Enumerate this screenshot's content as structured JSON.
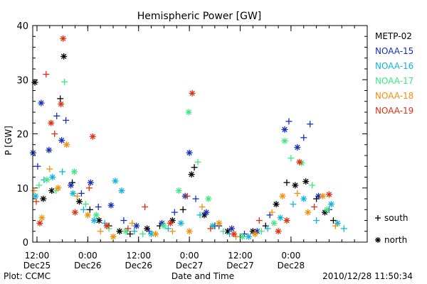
{
  "chart_data": {
    "type": "scatter",
    "title": "Hemispheric Power [GW]",
    "ylabel": "P [GW]",
    "xlabel": "Date and Time",
    "ylim": [
      0,
      40
    ],
    "yticks": [
      0,
      10,
      20,
      30,
      40
    ],
    "xlim": [
      "2010-12-25 11:00",
      "2010-12-28 18:00"
    ],
    "xticks": [
      {
        "time": "2010-12-25 12:00",
        "time_label": "12:00",
        "date_label": "Dec25"
      },
      {
        "time": "2010-12-26 00:00",
        "time_label": "0:00",
        "date_label": "Dec26"
      },
      {
        "time": "2010-12-26 12:00",
        "time_label": "12:00",
        "date_label": "Dec26"
      },
      {
        "time": "2010-12-27 00:00",
        "time_label": "0:00",
        "date_label": "Dec27"
      },
      {
        "time": "2010-12-27 12:00",
        "time_label": "12:00",
        "date_label": "Dec27"
      },
      {
        "time": "2010-12-28 00:00",
        "time_label": "0:00",
        "date_label": "Dec28"
      }
    ],
    "legend_position": "right",
    "legend_satellites": [
      {
        "name": "METP-02",
        "color": "#000000"
      },
      {
        "name": "NOAA-15",
        "color": "#1530b8"
      },
      {
        "name": "NOAA-16",
        "color": "#10b4e0"
      },
      {
        "name": "NOAA-17",
        "color": "#40e880"
      },
      {
        "name": "NOAA-18",
        "color": "#f0900a"
      },
      {
        "name": "NOAA-19",
        "color": "#e03010"
      }
    ],
    "legend_markers": [
      {
        "symbol": "+",
        "label": "south"
      },
      {
        "symbol": "*",
        "label": "north"
      }
    ],
    "series": [
      {
        "name": "METP-02",
        "color": "#000000",
        "points": [
          {
            "t": "2010-12-25 11:30",
            "v": 29.5,
            "m": "*"
          },
          {
            "t": "2010-12-25 13:30",
            "v": 8.0,
            "m": "*"
          },
          {
            "t": "2010-12-25 15:30",
            "v": 9.5,
            "m": "*"
          },
          {
            "t": "2010-12-25 17:30",
            "v": 26.5,
            "m": "+"
          },
          {
            "t": "2010-12-25 18:20",
            "v": 34.3,
            "m": "*"
          },
          {
            "t": "2010-12-25 20:20",
            "v": 11.0,
            "m": "+"
          },
          {
            "t": "2010-12-25 22:00",
            "v": 7.5,
            "m": "*"
          },
          {
            "t": "2010-12-26 00:30",
            "v": 6.0,
            "m": "+"
          },
          {
            "t": "2010-12-26 02:40",
            "v": 4.0,
            "m": "*"
          },
          {
            "t": "2010-12-26 05:00",
            "v": 3.0,
            "m": "+"
          },
          {
            "t": "2010-12-26 07:30",
            "v": 2.0,
            "m": "*"
          },
          {
            "t": "2010-12-26 10:00",
            "v": 1.5,
            "m": "+"
          },
          {
            "t": "2010-12-26 14:00",
            "v": 2.5,
            "m": "*"
          },
          {
            "t": "2010-12-26 17:00",
            "v": 3.0,
            "m": "+"
          },
          {
            "t": "2010-12-26 20:00",
            "v": 4.0,
            "m": "*"
          },
          {
            "t": "2010-12-26 22:30",
            "v": 6.0,
            "m": "+"
          },
          {
            "t": "2010-12-27 00:30",
            "v": 12.5,
            "m": "*"
          },
          {
            "t": "2010-12-27 01:10",
            "v": 13.8,
            "m": "+"
          },
          {
            "t": "2010-12-27 03:30",
            "v": 5.0,
            "m": "*"
          },
          {
            "t": "2010-12-27 06:00",
            "v": 3.0,
            "m": "+"
          },
          {
            "t": "2010-12-27 09:00",
            "v": 2.0,
            "m": "*"
          },
          {
            "t": "2010-12-27 12:00",
            "v": 1.0,
            "m": "+"
          },
          {
            "t": "2010-12-27 15:00",
            "v": 2.0,
            "m": "*"
          },
          {
            "t": "2010-12-27 18:00",
            "v": 3.0,
            "m": "+"
          },
          {
            "t": "2010-12-27 20:30",
            "v": 7.0,
            "m": "*"
          },
          {
            "t": "2010-12-27 23:00",
            "v": 11.0,
            "m": "+"
          },
          {
            "t": "2010-12-28 01:00",
            "v": 10.5,
            "m": "*"
          },
          {
            "t": "2010-12-28 03:30",
            "v": 11.2,
            "m": "*"
          },
          {
            "t": "2010-12-28 06:00",
            "v": 8.0,
            "m": "+"
          },
          {
            "t": "2010-12-28 08:00",
            "v": 5.5,
            "m": "*"
          },
          {
            "t": "2010-12-28 10:00",
            "v": 4.0,
            "m": "+"
          }
        ]
      },
      {
        "name": "NOAA-15",
        "color": "#1530b8",
        "points": [
          {
            "t": "2010-12-25 11:05",
            "v": 16.5,
            "m": "*"
          },
          {
            "t": "2010-12-25 12:10",
            "v": 14.0,
            "m": "+"
          },
          {
            "t": "2010-12-25 13:00",
            "v": 25.7,
            "m": "*"
          },
          {
            "t": "2010-12-25 14:50",
            "v": 17.0,
            "m": "*"
          },
          {
            "t": "2010-12-25 16:40",
            "v": 23.3,
            "m": "+"
          },
          {
            "t": "2010-12-25 17:50",
            "v": 18.8,
            "m": "*"
          },
          {
            "t": "2010-12-25 18:50",
            "v": 22.5,
            "m": "+"
          },
          {
            "t": "2010-12-25 20:00",
            "v": 10.5,
            "m": "*"
          },
          {
            "t": "2010-12-25 22:30",
            "v": 9.0,
            "m": "+"
          },
          {
            "t": "2010-12-26 00:40",
            "v": 11.0,
            "m": "*"
          },
          {
            "t": "2010-12-26 02:30",
            "v": 6.5,
            "m": "+"
          },
          {
            "t": "2010-12-26 05:30",
            "v": 6.8,
            "m": "*"
          },
          {
            "t": "2010-12-26 08:30",
            "v": 4.0,
            "m": "+"
          },
          {
            "t": "2010-12-26 11:30",
            "v": 3.0,
            "m": "*"
          },
          {
            "t": "2010-12-26 14:30",
            "v": 2.0,
            "m": "+"
          },
          {
            "t": "2010-12-26 17:30",
            "v": 3.5,
            "m": "*"
          },
          {
            "t": "2010-12-26 20:30",
            "v": 5.5,
            "m": "+"
          },
          {
            "t": "2010-12-26 23:00",
            "v": 8.5,
            "m": "*"
          },
          {
            "t": "2010-12-27 00:00",
            "v": 16.5,
            "m": "*"
          },
          {
            "t": "2010-12-27 01:30",
            "v": 8.0,
            "m": "+"
          },
          {
            "t": "2010-12-27 04:00",
            "v": 5.5,
            "m": "*"
          },
          {
            "t": "2010-12-27 07:00",
            "v": 3.0,
            "m": "+"
          },
          {
            "t": "2010-12-27 10:00",
            "v": 2.5,
            "m": "*"
          },
          {
            "t": "2010-12-27 13:00",
            "v": 1.5,
            "m": "+"
          },
          {
            "t": "2010-12-27 16:00",
            "v": 2.0,
            "m": "*"
          },
          {
            "t": "2010-12-27 19:00",
            "v": 5.0,
            "m": "+"
          },
          {
            "t": "2010-12-27 22:30",
            "v": 20.8,
            "m": "*"
          },
          {
            "t": "2010-12-27 23:30",
            "v": 22.3,
            "m": "+"
          },
          {
            "t": "2010-12-28 01:30",
            "v": 17.5,
            "m": "*"
          },
          {
            "t": "2010-12-28 03:00",
            "v": 19.3,
            "m": "+"
          },
          {
            "t": "2010-12-28 04:30",
            "v": 21.8,
            "m": "+"
          },
          {
            "t": "2010-12-28 06:30",
            "v": 8.5,
            "m": "*"
          },
          {
            "t": "2010-12-28 09:00",
            "v": 6.0,
            "m": "+"
          }
        ]
      },
      {
        "name": "NOAA-16",
        "color": "#10b4e0",
        "points": [
          {
            "t": "2010-12-25 11:40",
            "v": 8.5,
            "m": "*"
          },
          {
            "t": "2010-12-25 13:40",
            "v": 11.5,
            "m": "+"
          },
          {
            "t": "2010-12-25 15:40",
            "v": 12.0,
            "m": "*"
          },
          {
            "t": "2010-12-25 18:00",
            "v": 13.0,
            "m": "+"
          },
          {
            "t": "2010-12-25 20:30",
            "v": 9.0,
            "m": "*"
          },
          {
            "t": "2010-12-25 23:00",
            "v": 6.0,
            "m": "+"
          },
          {
            "t": "2010-12-26 01:30",
            "v": 4.0,
            "m": "*"
          },
          {
            "t": "2010-12-26 04:00",
            "v": 3.5,
            "m": "+"
          },
          {
            "t": "2010-12-26 06:30",
            "v": 11.3,
            "m": "*"
          },
          {
            "t": "2010-12-26 08:00",
            "v": 9.5,
            "m": "*"
          },
          {
            "t": "2010-12-26 11:00",
            "v": 2.0,
            "m": "+"
          },
          {
            "t": "2010-12-26 15:00",
            "v": 1.5,
            "m": "*"
          },
          {
            "t": "2010-12-26 19:00",
            "v": 2.5,
            "m": "+"
          },
          {
            "t": "2010-12-26 22:00",
            "v": 3.5,
            "m": "*"
          },
          {
            "t": "2010-12-27 02:30",
            "v": 5.0,
            "m": "+"
          },
          {
            "t": "2010-12-27 05:30",
            "v": 3.0,
            "m": "*"
          },
          {
            "t": "2010-12-27 09:30",
            "v": 1.5,
            "m": "+"
          },
          {
            "t": "2010-12-27 14:00",
            "v": 1.0,
            "m": "*"
          },
          {
            "t": "2010-12-27 18:30",
            "v": 2.5,
            "m": "+"
          },
          {
            "t": "2010-12-27 21:30",
            "v": 4.5,
            "m": "*"
          },
          {
            "t": "2010-12-28 00:30",
            "v": 7.0,
            "m": "+"
          },
          {
            "t": "2010-12-28 03:00",
            "v": 8.0,
            "m": "*"
          },
          {
            "t": "2010-12-28 06:00",
            "v": 4.0,
            "m": "+"
          },
          {
            "t": "2010-12-28 09:30",
            "v": 7.0,
            "m": "*"
          },
          {
            "t": "2010-12-28 11:00",
            "v": 3.5,
            "m": "*"
          },
          {
            "t": "2010-12-28 12:30",
            "v": 2.5,
            "m": "+"
          }
        ]
      },
      {
        "name": "NOAA-17",
        "color": "#40e880",
        "points": [
          {
            "t": "2010-12-25 12:30",
            "v": 10.5,
            "m": "+"
          },
          {
            "t": "2010-12-25 14:20",
            "v": 11.5,
            "m": "*"
          },
          {
            "t": "2010-12-25 16:30",
            "v": 9.5,
            "m": "+"
          },
          {
            "t": "2010-12-25 18:30",
            "v": 29.6,
            "m": "+"
          },
          {
            "t": "2010-12-25 20:50",
            "v": 13.0,
            "m": "*"
          },
          {
            "t": "2010-12-25 23:30",
            "v": 7.0,
            "m": "+"
          },
          {
            "t": "2010-12-26 02:00",
            "v": 5.0,
            "m": "*"
          },
          {
            "t": "2010-12-26 05:00",
            "v": 2.5,
            "m": "+"
          },
          {
            "t": "2010-12-26 09:00",
            "v": 2.0,
            "m": "*"
          },
          {
            "t": "2010-12-26 13:00",
            "v": 1.5,
            "m": "+"
          },
          {
            "t": "2010-12-26 18:00",
            "v": 3.0,
            "m": "*"
          },
          {
            "t": "2010-12-26 21:30",
            "v": 9.5,
            "m": "*"
          },
          {
            "t": "2010-12-26 23:50",
            "v": 24.0,
            "m": "*"
          },
          {
            "t": "2010-12-27 02:00",
            "v": 14.8,
            "m": "+"
          },
          {
            "t": "2010-12-27 04:30",
            "v": 8.0,
            "m": "*"
          },
          {
            "t": "2010-12-27 08:00",
            "v": 2.0,
            "m": "+"
          },
          {
            "t": "2010-12-27 12:30",
            "v": 1.0,
            "m": "*"
          },
          {
            "t": "2010-12-27 17:00",
            "v": 2.0,
            "m": "+"
          },
          {
            "t": "2010-12-27 20:00",
            "v": 3.5,
            "m": "*"
          },
          {
            "t": "2010-12-27 22:30",
            "v": 18.7,
            "m": "*"
          },
          {
            "t": "2010-12-28 00:00",
            "v": 15.5,
            "m": "+"
          },
          {
            "t": "2010-12-28 02:30",
            "v": 14.6,
            "m": "*"
          },
          {
            "t": "2010-12-28 05:00",
            "v": 10.5,
            "m": "+"
          },
          {
            "t": "2010-12-28 08:30",
            "v": 6.0,
            "m": "*"
          }
        ]
      },
      {
        "name": "NOAA-18",
        "color": "#f0900a",
        "points": [
          {
            "t": "2010-12-25 11:20",
            "v": 9.5,
            "m": "+"
          },
          {
            "t": "2010-12-25 13:10",
            "v": 4.5,
            "m": "*"
          },
          {
            "t": "2010-12-25 15:00",
            "v": 13.5,
            "m": "+"
          },
          {
            "t": "2010-12-25 17:00",
            "v": 10.0,
            "m": "*"
          },
          {
            "t": "2010-12-25 19:00",
            "v": 18.0,
            "m": "*"
          },
          {
            "t": "2010-12-25 21:30",
            "v": 8.5,
            "m": "+"
          },
          {
            "t": "2010-12-26 00:00",
            "v": 5.0,
            "m": "*"
          },
          {
            "t": "2010-12-26 03:00",
            "v": 2.0,
            "m": "+"
          },
          {
            "t": "2010-12-26 06:00",
            "v": 1.0,
            "m": "*"
          },
          {
            "t": "2010-12-26 10:30",
            "v": 3.5,
            "m": "+"
          },
          {
            "t": "2010-12-26 16:00",
            "v": 1.5,
            "m": "*"
          },
          {
            "t": "2010-12-26 20:00",
            "v": 2.0,
            "m": "+"
          },
          {
            "t": "2010-12-27 00:00",
            "v": 2.0,
            "m": "*"
          },
          {
            "t": "2010-12-27 03:00",
            "v": 6.5,
            "m": "+"
          },
          {
            "t": "2010-12-27 07:00",
            "v": 3.5,
            "m": "*"
          },
          {
            "t": "2010-12-27 11:00",
            "v": 1.0,
            "m": "+"
          },
          {
            "t": "2010-12-27 15:30",
            "v": 1.5,
            "m": "*"
          },
          {
            "t": "2010-12-27 19:30",
            "v": 5.5,
            "m": "+"
          },
          {
            "t": "2010-12-27 22:00",
            "v": 8.5,
            "m": "*"
          },
          {
            "t": "2010-12-28 01:30",
            "v": 9.0,
            "m": "+"
          },
          {
            "t": "2010-12-28 04:00",
            "v": 5.5,
            "m": "*"
          },
          {
            "t": "2010-12-28 07:30",
            "v": 8.5,
            "m": "*"
          },
          {
            "t": "2010-12-28 10:30",
            "v": 3.0,
            "m": "+"
          }
        ]
      },
      {
        "name": "NOAA-19",
        "color": "#e03010",
        "points": [
          {
            "t": "2010-12-25 11:50",
            "v": 7.5,
            "m": "+"
          },
          {
            "t": "2010-12-25 12:40",
            "v": 3.5,
            "m": "*"
          },
          {
            "t": "2010-12-25 14:10",
            "v": 31.0,
            "m": "+"
          },
          {
            "t": "2010-12-25 15:20",
            "v": 22.0,
            "m": "*"
          },
          {
            "t": "2010-12-25 16:10",
            "v": 20.0,
            "m": "+"
          },
          {
            "t": "2010-12-25 17:40",
            "v": 25.5,
            "m": "*"
          },
          {
            "t": "2010-12-25 18:10",
            "v": 37.6,
            "m": "*"
          },
          {
            "t": "2010-12-25 21:00",
            "v": 5.5,
            "m": "*"
          },
          {
            "t": "2010-12-26 00:20",
            "v": 10.0,
            "m": "+"
          },
          {
            "t": "2010-12-26 01:10",
            "v": 19.5,
            "m": "*"
          },
          {
            "t": "2010-12-26 04:30",
            "v": 3.0,
            "m": "*"
          },
          {
            "t": "2010-12-26 09:30",
            "v": 2.5,
            "m": "+"
          },
          {
            "t": "2010-12-26 13:30",
            "v": 6.5,
            "m": "+"
          },
          {
            "t": "2010-12-26 19:30",
            "v": 3.5,
            "m": "*"
          },
          {
            "t": "2010-12-26 23:30",
            "v": 8.5,
            "m": "+"
          },
          {
            "t": "2010-12-27 00:40",
            "v": 27.5,
            "m": "*"
          },
          {
            "t": "2010-12-27 05:00",
            "v": 2.5,
            "m": "+"
          },
          {
            "t": "2010-12-27 10:30",
            "v": 1.5,
            "m": "*"
          },
          {
            "t": "2010-12-27 16:30",
            "v": 4.0,
            "m": "+"
          },
          {
            "t": "2010-12-27 21:00",
            "v": 2.0,
            "m": "*"
          },
          {
            "t": "2010-12-27 23:00",
            "v": 4.0,
            "m": "*"
          },
          {
            "t": "2010-12-28 02:00",
            "v": 14.8,
            "m": "*"
          },
          {
            "t": "2010-12-28 05:30",
            "v": 6.5,
            "m": "+"
          },
          {
            "t": "2010-12-28 09:00",
            "v": 8.8,
            "m": "*"
          }
        ]
      }
    ]
  },
  "footer": {
    "plot_credit": "Plot: CCMC",
    "timestamp": "2010/12/28 11:50:34"
  }
}
